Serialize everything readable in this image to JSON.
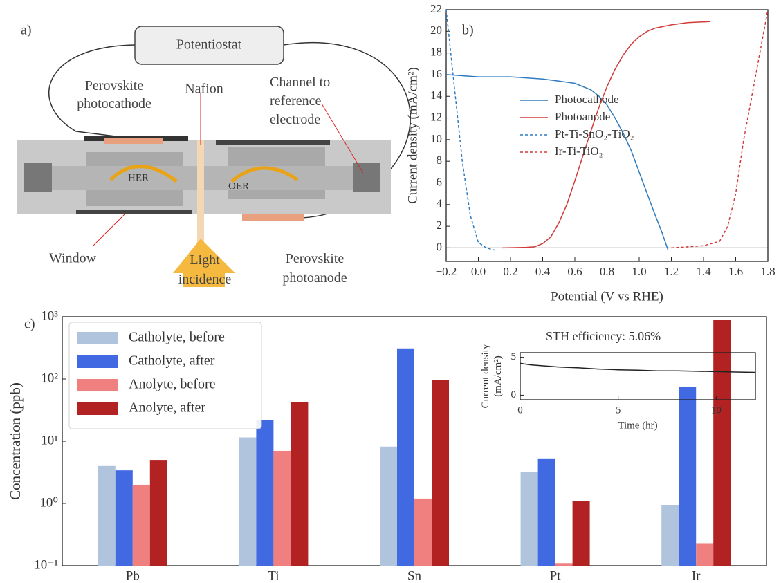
{
  "diagram": {
    "panel_label": "a)",
    "potentiostat": "Potentiostat",
    "photocathode": [
      "Perovskite",
      "photocathode"
    ],
    "nafion": "Nafion",
    "channel": [
      "Channel to",
      "reference",
      "electrode"
    ],
    "her": "HER",
    "oer": "OER",
    "window": "Window",
    "light": [
      "Light",
      "incidence"
    ],
    "photoanode": [
      "Perovskite",
      "photoanode"
    ]
  },
  "chart_data": [
    {
      "type": "line",
      "panel_label": "b)",
      "xlabel": "Potential (V vs RHE)",
      "ylabel": "Current density (mA/cm²)",
      "xlim": [
        -0.2,
        1.8
      ],
      "ylim": [
        -1.25,
        22
      ],
      "xticks": [
        {
          "value": -0.2,
          "label": "−0.2"
        },
        {
          "value": 0,
          "label": "0.0"
        },
        0.2,
        0.4,
        0.6,
        0.8,
        {
          "value": 1,
          "label": "1.0"
        },
        1.2,
        1.4,
        1.6,
        1.8
      ],
      "yticks": [
        0,
        2,
        4,
        6,
        8,
        10,
        12,
        14,
        16,
        18,
        20,
        22
      ],
      "zero_line": true,
      "legend": "right",
      "series": [
        {
          "name": "Photocathode",
          "color": "#2f7bbf",
          "linestyle": "solid",
          "x": [
            -0.2,
            0,
            0.2,
            0.4,
            0.5,
            0.6,
            0.7,
            0.75,
            0.8,
            0.85,
            0.9,
            0.95,
            1.0,
            1.05,
            1.1,
            1.14,
            1.17,
            1.18
          ],
          "values": [
            16.0,
            15.8,
            15.8,
            15.6,
            15.4,
            15.2,
            14.6,
            14.0,
            13.2,
            12.0,
            10.6,
            9.0,
            7.0,
            5.0,
            3.0,
            1.5,
            0.2,
            -0.2
          ]
        },
        {
          "name": "Photoanode",
          "color": "#d23a3a",
          "linestyle": "solid",
          "x": [
            0.15,
            0.3,
            0.35,
            0.4,
            0.45,
            0.5,
            0.55,
            0.6,
            0.65,
            0.7,
            0.75,
            0.8,
            0.85,
            0.9,
            0.95,
            1.0,
            1.05,
            1.1,
            1.2,
            1.3,
            1.44
          ],
          "values": [
            0.0,
            0.05,
            0.1,
            0.4,
            1.0,
            2.3,
            4.0,
            6.2,
            8.5,
            10.8,
            13.0,
            14.9,
            16.5,
            17.8,
            18.8,
            19.5,
            20.0,
            20.3,
            20.6,
            20.8,
            20.9
          ]
        },
        {
          "name": "Pt-Ti-SnO₂-TiO₂",
          "color": "#2f7bbf",
          "linestyle": "dashed",
          "x": [
            -0.2,
            -0.15,
            -0.1,
            -0.05,
            0,
            0.05,
            0.1
          ],
          "values": [
            22,
            15,
            8,
            3,
            0.5,
            0,
            -0.2
          ]
        },
        {
          "name": "Ir-Ti-TiO₂",
          "color": "#d23a3a",
          "linestyle": "dashed",
          "x": [
            1.2,
            1.4,
            1.5,
            1.55,
            1.6,
            1.65,
            1.7,
            1.75,
            1.8
          ],
          "values": [
            0,
            0.2,
            0.6,
            2,
            5,
            10,
            14,
            18,
            22
          ]
        }
      ]
    },
    {
      "type": "bar",
      "panel_label": "c)",
      "ylabel": "Concentration (ppb)",
      "yscale": "log",
      "legend": "upper left",
      "ylim": [
        0.1,
        1000
      ],
      "yticks": [
        {
          "value": 0.1,
          "label": "10⁻¹"
        },
        {
          "value": 1,
          "label": "10⁰"
        },
        {
          "value": 10,
          "label": "10¹"
        },
        {
          "value": 100,
          "label": "10²"
        },
        {
          "value": 1000,
          "label": "10³"
        }
      ],
      "categories": [
        "Pb",
        "Ti",
        "Sn",
        "Pt",
        "Ir"
      ],
      "series": [
        {
          "name": "Catholyte, before",
          "color": "#b0c4de",
          "values": [
            4,
            11.5,
            8.2,
            3.2,
            0.95
          ]
        },
        {
          "name": "Catholyte, after",
          "color": "#4169e1",
          "values": [
            3.4,
            22,
            310,
            5.3,
            75
          ]
        },
        {
          "name": "Anolyte, before",
          "color": "#f08080",
          "values": [
            2,
            7,
            1.2,
            0.11,
            0.23
          ]
        },
        {
          "name": "Anolyte, after",
          "color": "#b22222",
          "values": [
            5,
            42,
            95,
            1.1,
            900
          ]
        }
      ]
    },
    {
      "type": "line",
      "title": "STH efficiency:  5.06%",
      "xlabel": "Time (hr)",
      "ylabel": [
        "Current density",
        "(mA/cm²)"
      ],
      "xlim": [
        0,
        12
      ],
      "ylim": [
        -0.6,
        5.6
      ],
      "xticks": [
        0,
        5,
        10
      ],
      "yticks": [
        0,
        5
      ],
      "series": [
        {
          "color": "#222222",
          "linestyle": "solid",
          "x": [
            0,
            0.5,
            1,
            2,
            3,
            4,
            5,
            6,
            7,
            8,
            9,
            10,
            11,
            12
          ],
          "values": [
            4.2,
            4.0,
            3.9,
            3.7,
            3.6,
            3.45,
            3.35,
            3.3,
            3.2,
            3.2,
            3.15,
            3.1,
            3.05,
            3.0
          ]
        }
      ]
    }
  ]
}
